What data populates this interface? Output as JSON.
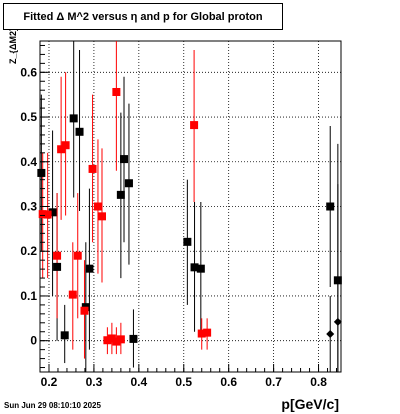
{
  "title": "Fitted Δ M^2 versus η and p for Global proton",
  "timestamp": "Sun Jun 29 08:10:10 2025",
  "chart_data": {
    "type": "scatter",
    "title": "Fitted Δ M^2 versus η and p for Global proton",
    "xlabel": "p[GeV/c]",
    "ylabel": "Z_{ΔM2}",
    "xlim": [
      0.18,
      0.85
    ],
    "ylim": [
      -0.07,
      0.67
    ],
    "grid": true,
    "x_ticks": [
      "0.2",
      "0.3",
      "0.4",
      "0.5",
      "0.6",
      "0.7",
      "0.8"
    ],
    "y_ticks": [
      "0",
      "0.1",
      "0.2",
      "0.3",
      "0.4",
      "0.5",
      "0.6"
    ],
    "series": [
      {
        "color": "#000000",
        "marker": "square",
        "points": [
          {
            "x": 0.183,
            "y": 0.375,
            "lo": 0.2,
            "hi": 0.55
          },
          {
            "x": 0.208,
            "y": 0.287,
            "lo": 0.1,
            "hi": 0.47
          },
          {
            "x": 0.218,
            "y": 0.165,
            "lo": 0.0,
            "hi": 0.33
          },
          {
            "x": 0.235,
            "y": 0.012,
            "lo": -0.05,
            "hi": 0.08
          },
          {
            "x": 0.255,
            "y": 0.497,
            "lo": 0.32,
            "hi": 0.67
          },
          {
            "x": 0.268,
            "y": 0.467,
            "lo": 0.29,
            "hi": 0.65
          },
          {
            "x": 0.282,
            "y": 0.075,
            "lo": -0.07,
            "hi": 0.22
          },
          {
            "x": 0.29,
            "y": 0.161,
            "lo": -0.02,
            "hi": 0.34
          },
          {
            "x": 0.36,
            "y": 0.326,
            "lo": 0.14,
            "hi": 0.51
          },
          {
            "x": 0.367,
            "y": 0.406,
            "lo": 0.22,
            "hi": 0.59
          },
          {
            "x": 0.378,
            "y": 0.352,
            "lo": 0.17,
            "hi": 0.53
          },
          {
            "x": 0.388,
            "y": 0.004,
            "lo": -0.06,
            "hi": 0.07
          },
          {
            "x": 0.508,
            "y": 0.221,
            "lo": 0.08,
            "hi": 0.36
          },
          {
            "x": 0.524,
            "y": 0.164,
            "lo": 0.02,
            "hi": 0.31
          },
          {
            "x": 0.538,
            "y": 0.161,
            "lo": 0.01,
            "hi": 0.31
          },
          {
            "x": 0.826,
            "y": 0.3,
            "lo": 0.12,
            "hi": 0.48
          },
          {
            "x": 0.826,
            "y": 0.015,
            "lo": -0.07,
            "hi": 0.1
          },
          {
            "x": 0.843,
            "y": 0.135,
            "lo": -0.07,
            "hi": 0.35
          },
          {
            "x": 0.843,
            "y": 0.042,
            "lo": -0.07,
            "hi": 0.44
          }
        ]
      },
      {
        "color": "#ff0000",
        "marker": "square",
        "points": [
          {
            "x": 0.186,
            "y": 0.283,
            "lo": 0.14,
            "hi": 0.42
          },
          {
            "x": 0.197,
            "y": 0.282,
            "lo": 0.14,
            "hi": 0.42
          },
          {
            "x": 0.218,
            "y": 0.19,
            "lo": 0.05,
            "hi": 0.33
          },
          {
            "x": 0.227,
            "y": 0.428,
            "lo": 0.27,
            "hi": 0.59
          },
          {
            "x": 0.237,
            "y": 0.437,
            "lo": 0.28,
            "hi": 0.6
          },
          {
            "x": 0.253,
            "y": 0.103,
            "lo": -0.02,
            "hi": 0.22
          },
          {
            "x": 0.264,
            "y": 0.19,
            "lo": 0.05,
            "hi": 0.33
          },
          {
            "x": 0.279,
            "y": 0.067,
            "lo": -0.04,
            "hi": 0.18
          },
          {
            "x": 0.297,
            "y": 0.384,
            "lo": 0.22,
            "hi": 0.55
          },
          {
            "x": 0.309,
            "y": 0.3,
            "lo": 0.15,
            "hi": 0.45
          },
          {
            "x": 0.318,
            "y": 0.278,
            "lo": 0.13,
            "hi": 0.43
          },
          {
            "x": 0.33,
            "y": 0.001,
            "lo": -0.03,
            "hi": 0.03
          },
          {
            "x": 0.34,
            "y": 0.005,
            "lo": -0.03,
            "hi": 0.04
          },
          {
            "x": 0.35,
            "y": -0.002,
            "lo": -0.03,
            "hi": 0.03
          },
          {
            "x": 0.35,
            "y": 0.556,
            "lo": 0.38,
            "hi": 0.67
          },
          {
            "x": 0.36,
            "y": 0.003,
            "lo": -0.03,
            "hi": 0.04
          },
          {
            "x": 0.523,
            "y": 0.482,
            "lo": 0.31,
            "hi": 0.65
          },
          {
            "x": 0.54,
            "y": 0.016,
            "lo": -0.02,
            "hi": 0.05
          },
          {
            "x": 0.552,
            "y": 0.018,
            "lo": -0.02,
            "hi": 0.05
          }
        ]
      }
    ]
  }
}
